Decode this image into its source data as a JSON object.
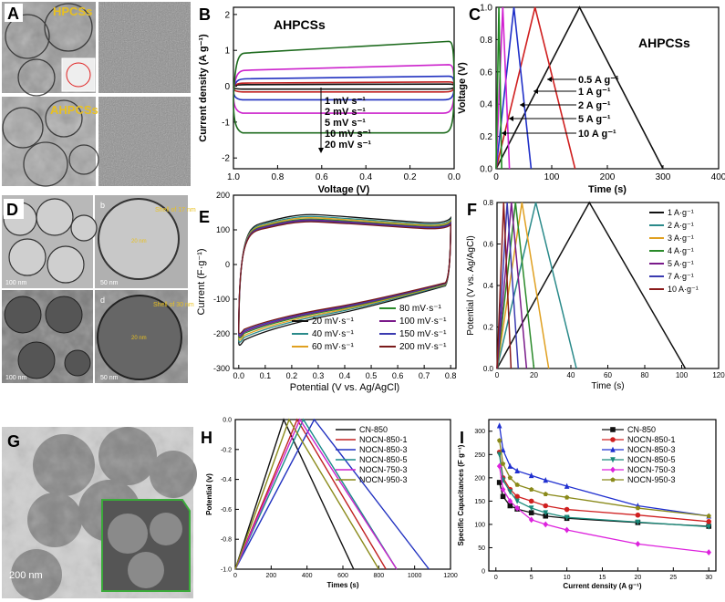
{
  "panel_letters": {
    "A": "A",
    "B": "B",
    "C": "C",
    "D": "D",
    "E": "E",
    "F": "F",
    "G": "G",
    "H": "H",
    "I": "I"
  },
  "micrographs": {
    "a_label_top": "HPCSs",
    "a_label_bottom": "AHPCSs",
    "d_shell_b": "Shell of 17 nm",
    "d_shell_d": "Shell of 30 nm",
    "d_pore_b": "20 nm",
    "d_pore_d": "20 nm",
    "d_sub_b": "b",
    "d_sub_d": "d",
    "d_scale_a": "100 nm",
    "d_scale_b": "50 nm",
    "d_scale_c": "100 nm",
    "d_scale_d": "50 nm",
    "g_scale": "200 nm"
  },
  "chart_data": [
    {
      "id": "B",
      "type": "line",
      "title": "AHPCSs",
      "xlabel": "Voltage (V)",
      "ylabel": "Current density (A g⁻¹)",
      "xlim": [
        1.0,
        0.0
      ],
      "ylim": [
        -2.3,
        2.2
      ],
      "xticks": [
        "1.0",
        "0.8",
        "0.6",
        "0.4",
        "0.2",
        "0.0"
      ],
      "yticks": [
        "2",
        "1",
        "0",
        "-1",
        "-2"
      ],
      "legend": [
        "1 mV s⁻¹",
        "2 mV s⁻¹",
        "5 mV s⁻¹",
        "10 mV s⁻¹",
        "20 mV s⁻¹"
      ],
      "series": [
        {
          "name": "1 mV s⁻¹",
          "color": "#111111",
          "upper": 0.06,
          "lower": -0.08
        },
        {
          "name": "2 mV s⁻¹",
          "color": "#c02020",
          "upper": 0.12,
          "lower": -0.16
        },
        {
          "name": "5 mV s⁻¹",
          "color": "#2030c0",
          "upper": 0.28,
          "lower": -0.38
        },
        {
          "name": "10 mV s⁻¹",
          "color": "#cc22cc",
          "upper": 0.6,
          "lower": -0.75
        },
        {
          "name": "20 mV s⁻¹",
          "color": "#1e6b1e",
          "upper": 1.25,
          "lower": -1.3
        }
      ]
    },
    {
      "id": "C",
      "type": "line",
      "title": "AHPCSs",
      "xlabel": "Time (s)",
      "ylabel": "Voltage (V)",
      "xlim": [
        0,
        400
      ],
      "ylim": [
        0,
        1.0
      ],
      "xticks": [
        "0",
        "100",
        "200",
        "300",
        "400"
      ],
      "yticks": [
        "0.0",
        "0.2",
        "0.4",
        "0.6",
        "0.8",
        "1.0"
      ],
      "series": [
        {
          "name": "0.5 A g⁻¹",
          "color": "#111111",
          "peak": 150,
          "end": 300
        },
        {
          "name": "1 A g⁻¹",
          "color": "#d02020",
          "peak": 70,
          "end": 142
        },
        {
          "name": "2 A g⁻¹",
          "color": "#2030c8",
          "peak": 32,
          "end": 63
        },
        {
          "name": "5 A g⁻¹",
          "color": "#d020d0",
          "peak": 12,
          "end": 24
        },
        {
          "name": "10 A g⁻¹",
          "color": "#1e8a1e",
          "peak": 5,
          "end": 10
        }
      ]
    },
    {
      "id": "E",
      "type": "line",
      "xlabel": "Potential (V vs. Ag/AgCl)",
      "ylabel": "Current (F·g⁻¹)",
      "xlim": [
        -0.02,
        0.82
      ],
      "ylim": [
        -300,
        200
      ],
      "xticks": [
        "0.0",
        "0.1",
        "0.2",
        "0.3",
        "0.4",
        "0.5",
        "0.6",
        "0.7",
        "0.8"
      ],
      "yticks": [
        "200",
        "100",
        "0",
        "-100",
        "-200",
        "-300"
      ],
      "legend": [
        "20 mV·s⁻¹",
        "40 mV·s⁻¹",
        "60 mV·s⁻¹",
        "80 mV·s⁻¹",
        "100 mV·s⁻¹",
        "150 mV·s⁻¹",
        "200 mV·s⁻¹"
      ],
      "series": [
        {
          "name": "20 mV·s⁻¹",
          "color": "#111111",
          "scale": 1.12
        },
        {
          "name": "40 mV·s⁻¹",
          "color": "#2a8a8a",
          "scale": 1.08
        },
        {
          "name": "60 mV·s⁻¹",
          "color": "#e0a020",
          "scale": 1.05
        },
        {
          "name": "80 mV·s⁻¹",
          "color": "#2a8a2a",
          "scale": 1.02
        },
        {
          "name": "100 mV·s⁻¹",
          "color": "#7a1a8a",
          "scale": 1.0
        },
        {
          "name": "150 mV·s⁻¹",
          "color": "#3a3ab0",
          "scale": 0.98
        },
        {
          "name": "200 mV·s⁻¹",
          "color": "#7a1a1a",
          "scale": 0.96
        }
      ]
    },
    {
      "id": "F",
      "type": "line",
      "xlabel": "Time (s)",
      "ylabel": "Potential (V vs. Ag/AgCl)",
      "xlim": [
        0,
        120
      ],
      "ylim": [
        0,
        0.8
      ],
      "xticks": [
        "0",
        "20",
        "40",
        "60",
        "80",
        "100",
        "120"
      ],
      "yticks": [
        "0.0",
        "0.2",
        "0.4",
        "0.6",
        "0.8"
      ],
      "series": [
        {
          "name": "1 A·g⁻¹",
          "color": "#111111",
          "peak": 50,
          "end": 102
        },
        {
          "name": "2 A·g⁻¹",
          "color": "#2a8a8a",
          "peak": 21,
          "end": 43
        },
        {
          "name": "3 A·g⁻¹",
          "color": "#e0a020",
          "peak": 13.5,
          "end": 28
        },
        {
          "name": "4 A·g⁻¹",
          "color": "#2a8a2a",
          "peak": 10,
          "end": 20
        },
        {
          "name": "5 A·g⁻¹",
          "color": "#7a1a8a",
          "peak": 7.8,
          "end": 16
        },
        {
          "name": "7 A·g⁻¹",
          "color": "#3a3ab0",
          "peak": 5.5,
          "end": 11.5
        },
        {
          "name": "10 A·g⁻¹",
          "color": "#8a1a1a",
          "peak": 3.6,
          "end": 7.6
        }
      ]
    },
    {
      "id": "H",
      "type": "line",
      "xlabel": "Times (s)",
      "ylabel": "Potential (v)",
      "xlim": [
        0,
        1200
      ],
      "ylim": [
        -1.0,
        0.0
      ],
      "xticks": [
        "0",
        "200",
        "400",
        "600",
        "800",
        "1000",
        "1200"
      ],
      "yticks": [
        "0.0",
        "-0.2",
        "-0.4",
        "-0.6",
        "-0.8",
        "-1.0"
      ],
      "series": [
        {
          "name": "CN-850",
          "color": "#111111",
          "peak": 270,
          "end": 660
        },
        {
          "name": "NOCN-850-1",
          "color": "#c02020",
          "peak": 345,
          "end": 840
        },
        {
          "name": "NOCN-850-3",
          "color": "#2030c0",
          "peak": 440,
          "end": 1080
        },
        {
          "name": "NOCN-850-5",
          "color": "#1a8a8a",
          "peak": 380,
          "end": 900
        },
        {
          "name": "NOCN-750-3",
          "color": "#cc22cc",
          "peak": 360,
          "end": 900
        },
        {
          "name": "NOCN-950-3",
          "color": "#8a8a1a",
          "peak": 300,
          "end": 800
        }
      ]
    },
    {
      "id": "I",
      "type": "line",
      "xlabel": "Current density (A g⁻¹)",
      "ylabel": "Specific Capacitances (F g⁻¹)",
      "xlim": [
        -1,
        31
      ],
      "ylim": [
        0,
        325
      ],
      "xticks": [
        "0",
        "5",
        "10",
        "15",
        "20",
        "25",
        "30"
      ],
      "yticks": [
        "0",
        "50",
        "100",
        "150",
        "200",
        "250",
        "300"
      ],
      "x": [
        0.5,
        1,
        2,
        3,
        5,
        7,
        10,
        20,
        30
      ],
      "series": [
        {
          "name": "CN-850",
          "color": "#111111",
          "marker": "square",
          "values": [
            190,
            160,
            140,
            133,
            125,
            118,
            113,
            104,
            96
          ]
        },
        {
          "name": "NOCN-850-1",
          "color": "#d02020",
          "marker": "circle",
          "values": [
            255,
            200,
            175,
            160,
            150,
            140,
            132,
            120,
            106
          ]
        },
        {
          "name": "NOCN-850-3",
          "color": "#2030d0",
          "marker": "triangle",
          "values": [
            312,
            260,
            225,
            215,
            205,
            195,
            182,
            140,
            118
          ]
        },
        {
          "name": "NOCN-850-5",
          "color": "#1a8a7a",
          "marker": "triangle-down",
          "values": [
            250,
            195,
            170,
            150,
            135,
            125,
            115,
            105,
            95
          ]
        },
        {
          "name": "NOCN-750-3",
          "color": "#dd22dd",
          "marker": "diamond",
          "values": [
            225,
            175,
            150,
            135,
            110,
            100,
            88,
            58,
            40
          ]
        },
        {
          "name": "NOCN-950-3",
          "color": "#8a8a1a",
          "marker": "pentagon",
          "values": [
            280,
            230,
            200,
            185,
            175,
            165,
            158,
            135,
            118
          ]
        }
      ]
    }
  ]
}
